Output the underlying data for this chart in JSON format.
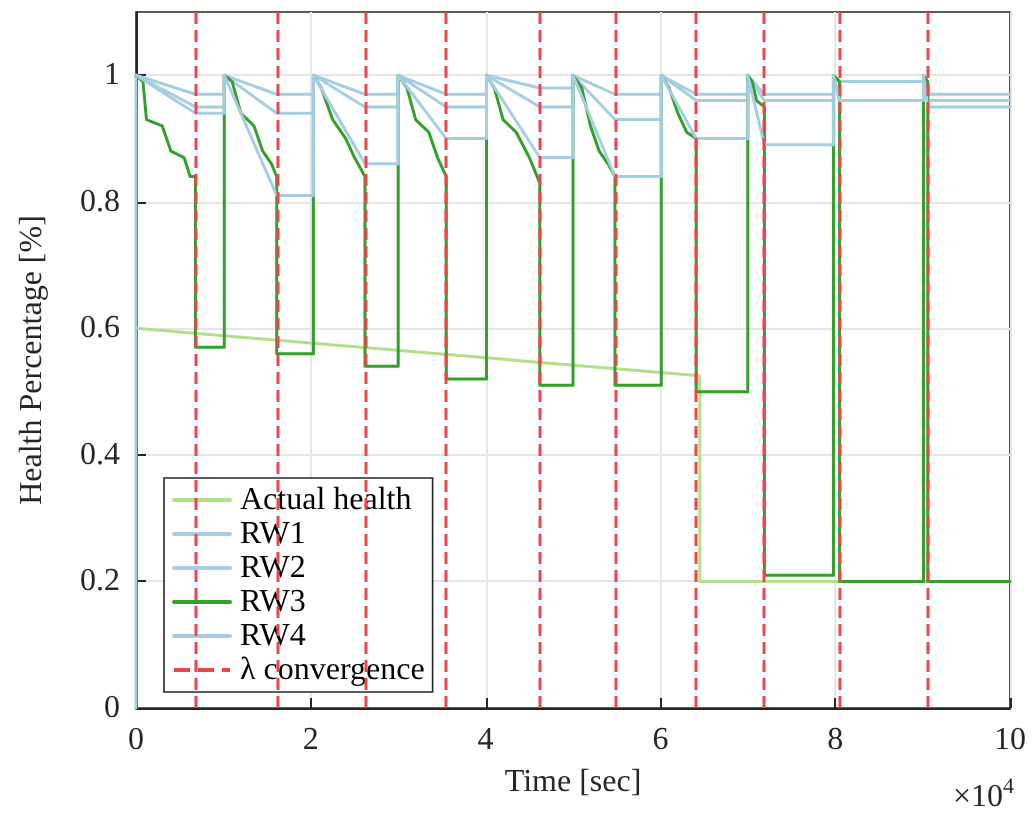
{
  "chart_data": {
    "type": "line",
    "xlabel": "Time [sec]",
    "ylabel": "Health Percentage [%]",
    "annotations": [
      "×10$^{4}$"
    ],
    "xlim": [
      0,
      10
    ],
    "xticks": [
      0,
      2,
      4,
      6,
      8,
      10
    ],
    "ylim": [
      0,
      1.1
    ],
    "yticks": [
      0,
      0.2,
      0.4,
      0.6,
      0.8,
      1
    ],
    "grid": true,
    "legend": "bottom left",
    "marker": "none",
    "line_style": "solid",
    "series": [
      {
        "name": "Actual health",
        "color": "#b2df8a",
        "x": [
          0,
          6.45,
          6.45,
          10
        ],
        "values": [
          0.6,
          0.525,
          0.2,
          0.2
        ]
      },
      {
        "name": "RW1",
        "color": "#a6cee3",
        "x": [
          0,
          0,
          0.68,
          1.01,
          1.01,
          1.61,
          2.03,
          2.03,
          2.62,
          3.0,
          3.0,
          3.55,
          4.01,
          4.01,
          4.62,
          5.0,
          5.0,
          5.48,
          6.01,
          6.01,
          6.41,
          7.0,
          7.0,
          7.19,
          7.98,
          7.98,
          8.05,
          9.01,
          9.01,
          9.06,
          10
        ],
        "values": [
          0,
          1,
          0.97,
          0.97,
          1,
          0.97,
          0.97,
          1,
          0.97,
          0.97,
          1,
          0.97,
          0.97,
          1,
          0.98,
          0.98,
          1,
          0.97,
          0.97,
          1,
          0.97,
          0.97,
          1,
          0.97,
          0.97,
          1,
          0.99,
          0.99,
          1,
          0.97,
          0.97
        ]
      },
      {
        "name": "RW2",
        "color": "#a6cee3",
        "x": [
          0,
          0.68,
          1.01,
          1.01,
          1.61,
          2.03,
          2.03,
          2.62,
          3.0,
          3.0,
          3.55,
          4.01,
          4.01,
          4.62,
          5.0,
          5.0,
          5.48,
          6.01,
          6.01,
          6.41,
          7.0,
          7.0,
          7.19,
          7.98,
          7.98,
          8.05,
          9.01,
          9.01,
          9.06,
          10
        ],
        "values": [
          1,
          0.95,
          0.95,
          1,
          0.94,
          0.94,
          1,
          0.95,
          0.95,
          1,
          0.95,
          0.95,
          1,
          0.95,
          0.95,
          1,
          0.93,
          0.93,
          1,
          0.96,
          0.96,
          1,
          0.96,
          0.96,
          1,
          0.96,
          0.96,
          1,
          0.96,
          0.96
        ]
      },
      {
        "name": "RW3",
        "color": "#33a02c",
        "x": [
          0,
          0.08,
          0.12,
          0.3,
          0.4,
          0.55,
          0.62,
          0.68,
          0.68,
          1.01,
          1.01,
          1.1,
          1.2,
          1.35,
          1.45,
          1.55,
          1.61,
          1.61,
          2.03,
          2.03,
          2.12,
          2.25,
          2.4,
          2.5,
          2.62,
          2.62,
          3.0,
          3.0,
          3.1,
          3.2,
          3.35,
          3.45,
          3.55,
          3.55,
          4.01,
          4.01,
          4.1,
          4.2,
          4.35,
          4.5,
          4.62,
          4.62,
          5.0,
          5.0,
          5.1,
          5.2,
          5.3,
          5.4,
          5.48,
          5.48,
          6.01,
          6.01,
          6.1,
          6.2,
          6.3,
          6.41,
          6.41,
          7.0,
          7.0,
          7.05,
          7.1,
          7.19,
          7.19,
          7.98,
          7.98,
          8.05,
          8.05,
          9.01,
          9.01,
          9.06,
          9.06,
          10
        ],
        "values": [
          1,
          0.99,
          0.93,
          0.92,
          0.88,
          0.87,
          0.84,
          0.84,
          0.57,
          0.57,
          1,
          0.99,
          0.94,
          0.92,
          0.88,
          0.86,
          0.84,
          0.56,
          0.56,
          1,
          0.98,
          0.93,
          0.9,
          0.87,
          0.84,
          0.54,
          0.54,
          1,
          0.98,
          0.93,
          0.91,
          0.87,
          0.84,
          0.52,
          0.52,
          1,
          0.98,
          0.93,
          0.91,
          0.87,
          0.83,
          0.51,
          0.51,
          1,
          0.98,
          0.92,
          0.88,
          0.86,
          0.84,
          0.51,
          0.51,
          1,
          0.98,
          0.94,
          0.91,
          0.9,
          0.5,
          0.5,
          1,
          0.99,
          0.96,
          0.95,
          0.21,
          0.21,
          1,
          0.99,
          0.2,
          0.2,
          1,
          0.99,
          0.2,
          0.2
        ]
      },
      {
        "name": "RW4",
        "color": "#a6cee3",
        "x": [
          0,
          0.68,
          1.01,
          1.01,
          1.61,
          2.03,
          2.03,
          2.62,
          3.0,
          3.0,
          3.55,
          4.01,
          4.01,
          4.62,
          5.0,
          5.0,
          5.48,
          6.01,
          6.01,
          6.41,
          7.0,
          7.0,
          7.19,
          7.98,
          7.98,
          8.05,
          9.01,
          9.01,
          9.06,
          10
        ],
        "values": [
          1,
          0.94,
          0.94,
          1,
          0.81,
          0.81,
          1,
          0.86,
          0.86,
          1,
          0.9,
          0.9,
          1,
          0.87,
          0.87,
          1,
          0.84,
          0.84,
          1,
          0.9,
          0.9,
          1,
          0.89,
          0.89,
          1,
          0.96,
          0.96,
          1,
          0.95,
          0.95
        ]
      }
    ],
    "ref_lines": [
      {
        "axis": "x",
        "value": 0.68,
        "label": "λ convergence",
        "color": "#f0444a",
        "line_style": "dashed"
      },
      {
        "axis": "x",
        "value": 1.61,
        "color": "#f0444a",
        "line_style": "dashed"
      },
      {
        "axis": "x",
        "value": 2.62,
        "color": "#f0444a",
        "line_style": "dashed"
      },
      {
        "axis": "x",
        "value": 3.55,
        "color": "#f0444a",
        "line_style": "dashed"
      },
      {
        "axis": "x",
        "value": 4.62,
        "color": "#f0444a",
        "line_style": "dashed"
      },
      {
        "axis": "x",
        "value": 5.48,
        "color": "#f0444a",
        "line_style": "dashed"
      },
      {
        "axis": "x",
        "value": 6.41,
        "color": "#f0444a",
        "line_style": "dashed"
      },
      {
        "axis": "x",
        "value": 7.19,
        "color": "#f0444a",
        "line_style": "dashed"
      },
      {
        "axis": "x",
        "value": 8.05,
        "color": "#f0444a",
        "line_style": "dashed"
      },
      {
        "axis": "x",
        "value": 9.06,
        "color": "#f0444a",
        "line_style": "dashed"
      }
    ]
  }
}
